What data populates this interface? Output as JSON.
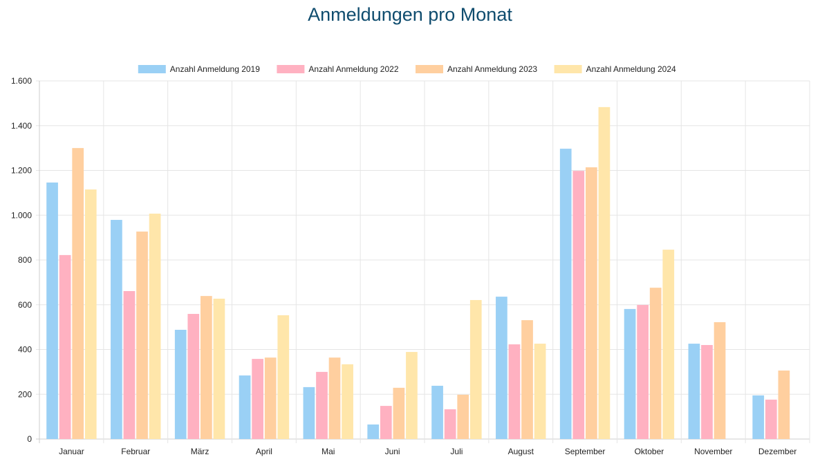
{
  "chart_data": {
    "type": "bar",
    "title": "Anmeldungen pro Monat",
    "categories": [
      "Januar",
      "Februar",
      "März",
      "April",
      "Mai",
      "Juni",
      "Juli",
      "August",
      "September",
      "Oktober",
      "November",
      "Dezember"
    ],
    "series": [
      {
        "name": "Anzahl Anmeldung 2019",
        "color": "#9ad0f5",
        "values": [
          1146,
          979,
          488,
          284,
          232,
          65,
          238,
          636,
          1297,
          581,
          426,
          195
        ]
      },
      {
        "name": "Anzahl Anmeldung 2022",
        "color": "#ffb1c1",
        "values": [
          822,
          661,
          559,
          358,
          300,
          148,
          133,
          423,
          1198,
          599,
          420,
          176
        ]
      },
      {
        "name": "Anzahl Anmeldung 2023",
        "color": "#ffcf9f",
        "values": [
          1300,
          927,
          639,
          364,
          364,
          229,
          198,
          531,
          1214,
          676,
          522,
          306
        ]
      },
      {
        "name": "Anzahl Anmeldung 2024",
        "color": "#ffe6aa",
        "values": [
          1115,
          1007,
          627,
          553,
          334,
          389,
          621,
          426,
          1483,
          846,
          null,
          null
        ]
      }
    ],
    "ylim": [
      0,
      1600
    ],
    "yticks": [
      0,
      200,
      400,
      600,
      800,
      1000,
      1200,
      1400,
      1600
    ],
    "ytick_labels": [
      "0",
      "200",
      "400",
      "600",
      "800",
      "1.000",
      "1.200",
      "1.400",
      "1.600"
    ],
    "grid": true,
    "legend": "top"
  }
}
